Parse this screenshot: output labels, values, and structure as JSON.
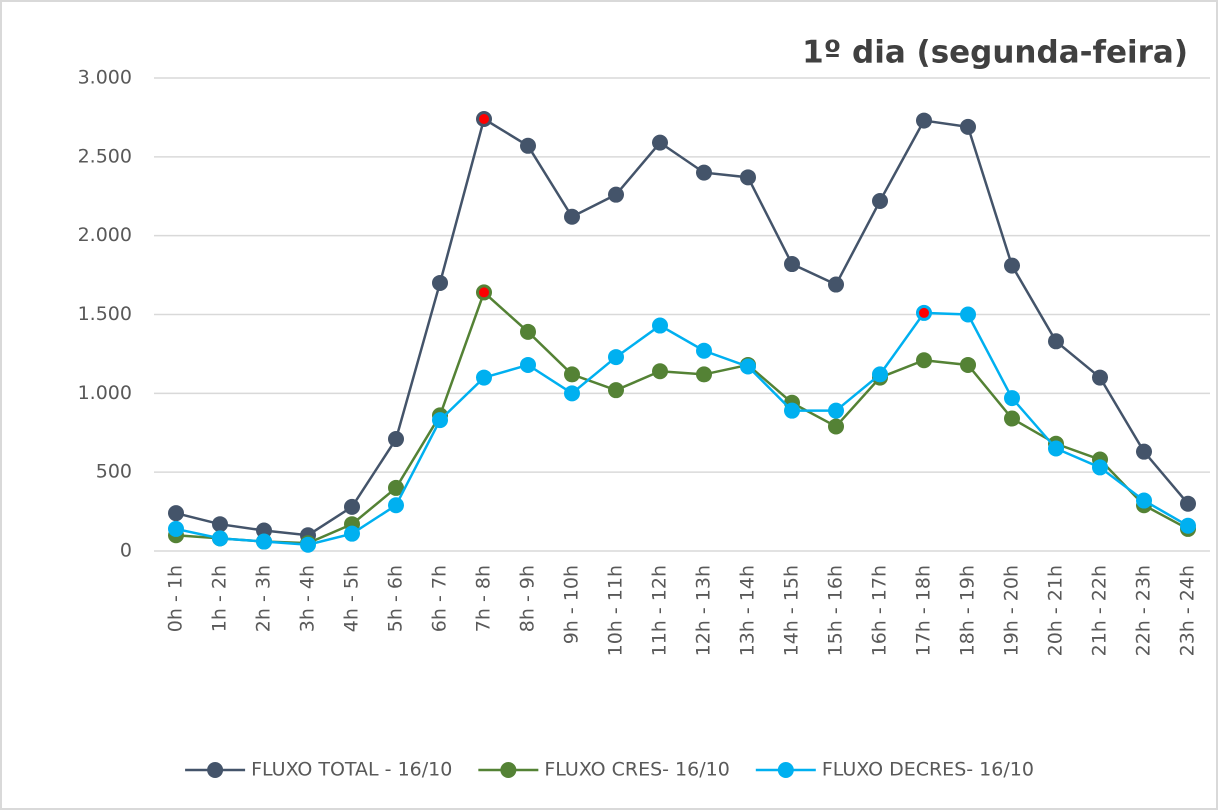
{
  "chart_data": {
    "type": "line",
    "title": "1º dia (segunda-feira)",
    "categories": [
      "0h - 1h",
      "1h - 2h",
      "2h - 3h",
      "3h - 4h",
      "4h - 5h",
      "5h - 6h",
      "6h - 7h",
      "7h - 8h",
      "8h - 9h",
      "9h - 10h",
      "10h - 11h",
      "11h - 12h",
      "12h - 13h",
      "13h - 14h",
      "14h - 15h",
      "15h - 16h",
      "16h - 17h",
      "17h - 18h",
      "18h - 19h",
      "19h - 20h",
      "20h - 21h",
      "21h - 22h",
      "22h - 23h",
      "23h - 24h"
    ],
    "series": [
      {
        "name": "FLUXO TOTAL - 16/10",
        "color": "#44546a",
        "values": [
          240,
          170,
          130,
          100,
          280,
          710,
          1700,
          2740,
          2570,
          2120,
          2260,
          2590,
          2400,
          2370,
          1820,
          1690,
          2220,
          2730,
          2690,
          1810,
          1330,
          1100,
          630,
          300
        ]
      },
      {
        "name": "FLUXO CRES- 16/10",
        "color": "#548235",
        "values": [
          100,
          80,
          60,
          50,
          170,
          400,
          860,
          1640,
          1390,
          1120,
          1020,
          1140,
          1120,
          1180,
          940,
          790,
          1100,
          1210,
          1180,
          840,
          680,
          580,
          290,
          140
        ]
      },
      {
        "name": "FLUXO DECRES- 16/10",
        "color": "#00b0f0",
        "values": [
          140,
          80,
          60,
          40,
          110,
          290,
          830,
          1100,
          1180,
          1000,
          1230,
          1430,
          1270,
          1170,
          890,
          890,
          1120,
          1510,
          1500,
          970,
          650,
          530,
          320,
          160
        ]
      }
    ],
    "ylim": [
      0,
      3000
    ],
    "yticks": [
      0,
      500,
      {
        "value": 1000,
        "label": "1.000"
      },
      {
        "value": 1500,
        "label": "1.500"
      },
      {
        "value": 2000,
        "label": "2.000"
      },
      {
        "value": 2500,
        "label": "2.500"
      },
      {
        "value": 3000,
        "label": "3.000"
      }
    ],
    "grid": true,
    "legend": "bottom",
    "max_marker_color": "#ff0000"
  }
}
